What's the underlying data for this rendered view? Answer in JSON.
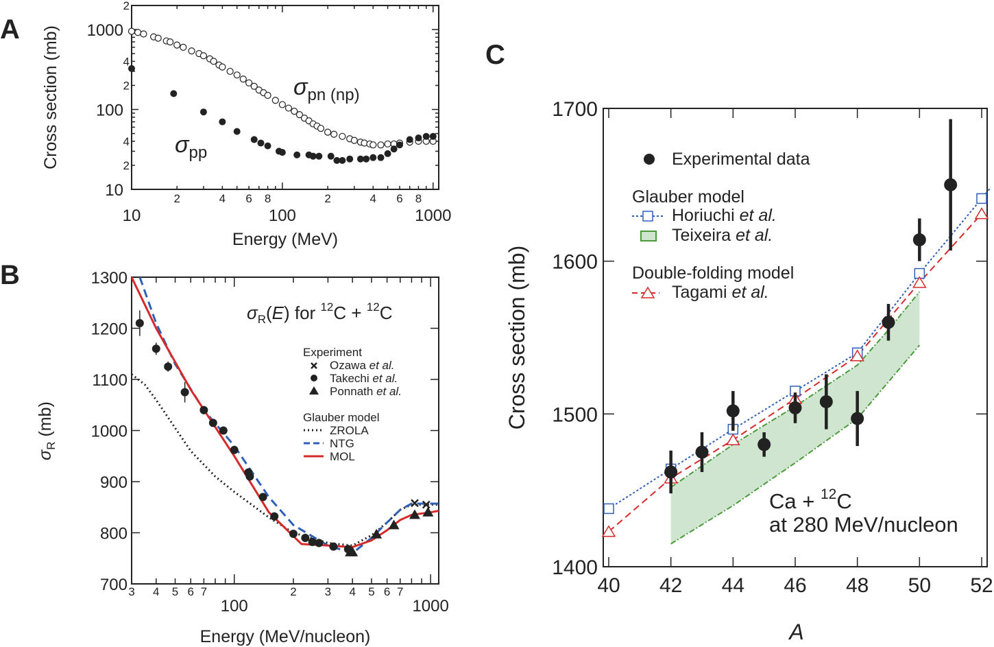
{
  "colors": {
    "axis": "#222222",
    "experiment": "#222222",
    "horiuchi": "#2f5fb5",
    "teixeira_fill": "#cfe5cf",
    "teixeira_line": "#4a9a3a",
    "tagami": "#d42a2a",
    "mol": "#d42a2a",
    "ntg": "#2f5fb5",
    "zrola": "#222222"
  },
  "chart_data": [
    {
      "panel": "A",
      "type": "scatter",
      "xscale": "log",
      "yscale": "log",
      "xlim": [
        10,
        1100
      ],
      "ylim": [
        10,
        2000
      ],
      "xlabel": "Energy (MeV)",
      "ylabel": "Cross section (mb)",
      "xticks_major": [
        "10",
        "100",
        "1000"
      ],
      "xticks_minor_labels": [
        "2",
        "4",
        "6",
        "8"
      ],
      "yticks_major": [
        "10",
        "100",
        "1000"
      ],
      "yticks_minor_labels": [
        "2",
        "4"
      ],
      "ytick_top": "2",
      "annotations": {
        "pn_symbol": "σ",
        "pn_sub": "pn (np)",
        "pp_symbol": "σ",
        "pp_sub": "pp"
      },
      "series": [
        {
          "name": "σpn (np)",
          "marker": "open-circle",
          "points": [
            [
              10,
              950
            ],
            [
              11,
              920
            ],
            [
              12,
              880
            ],
            [
              14,
              810
            ],
            [
              15,
              780
            ],
            [
              17,
              720
            ],
            [
              18,
              700
            ],
            [
              20,
              640
            ],
            [
              22,
              600
            ],
            [
              25,
              540
            ],
            [
              28,
              500
            ],
            [
              30,
              470
            ],
            [
              33,
              430
            ],
            [
              35,
              400
            ],
            [
              38,
              360
            ],
            [
              40,
              340
            ],
            [
              45,
              300
            ],
            [
              50,
              270
            ],
            [
              55,
              240
            ],
            [
              60,
              215
            ],
            [
              65,
              195
            ],
            [
              70,
              175
            ],
            [
              75,
              162
            ],
            [
              80,
              150
            ],
            [
              90,
              130
            ],
            [
              100,
              115
            ],
            [
              110,
              104
            ],
            [
              120,
              95
            ],
            [
              130,
              86
            ],
            [
              140,
              78
            ],
            [
              150,
              72
            ],
            [
              160,
              66
            ],
            [
              170,
              62
            ],
            [
              180,
              58
            ],
            [
              200,
              52
            ],
            [
              220,
              49
            ],
            [
              250,
              46
            ],
            [
              280,
              43
            ],
            [
              300,
              41
            ],
            [
              330,
              39
            ],
            [
              350,
              38
            ],
            [
              380,
              37
            ],
            [
              400,
              36
            ],
            [
              450,
              36
            ],
            [
              500,
              37
            ],
            [
              550,
              37
            ],
            [
              600,
              38
            ],
            [
              700,
              39
            ],
            [
              800,
              40
            ],
            [
              900,
              40
            ],
            [
              1000,
              40
            ]
          ]
        },
        {
          "name": "σpp",
          "marker": "filled-circle",
          "points": [
            [
              10,
              325
            ],
            [
              19,
              158
            ],
            [
              30,
              93
            ],
            [
              40,
              70
            ],
            [
              50,
              53
            ],
            [
              65,
              42
            ],
            [
              72,
              38
            ],
            [
              80,
              35
            ],
            [
              95,
              30
            ],
            [
              100,
              29
            ],
            [
              125,
              27
            ],
            [
              150,
              27
            ],
            [
              160,
              26
            ],
            [
              175,
              26
            ],
            [
              210,
              26
            ],
            [
              230,
              23
            ],
            [
              250,
              23
            ],
            [
              280,
              24
            ],
            [
              330,
              24
            ],
            [
              360,
              24
            ],
            [
              400,
              25
            ],
            [
              450,
              25
            ],
            [
              500,
              28
            ],
            [
              550,
              32
            ],
            [
              600,
              36
            ],
            [
              700,
              42
            ],
            [
              800,
              44
            ],
            [
              900,
              46
            ],
            [
              1000,
              46
            ]
          ]
        }
      ]
    },
    {
      "panel": "B",
      "type": "line",
      "xscale": "log",
      "yscale": "linear",
      "xlim": [
        30,
        1100
      ],
      "ylim": [
        700,
        1300
      ],
      "xlabel": "Energy (MeV/nucleon)",
      "ylabel": {
        "symbol": "σ",
        "sub": "R",
        "rest": " (mb)"
      },
      "title": {
        "a": "σ",
        "sub": "R",
        "b": "(",
        "E": "E",
        "c": ") for ",
        "sup1": "12",
        "d": "C + ",
        "sup2": "12",
        "e": "C"
      },
      "xticks_major": [
        "100",
        "1000"
      ],
      "xticks_minor_labels": [
        "3",
        "4",
        "5",
        "6",
        "7",
        "2",
        "3",
        "4",
        "5",
        "6",
        "7"
      ],
      "yticks": [
        "700",
        "800",
        "900",
        "1000",
        "1100",
        "1200",
        "1300"
      ],
      "legend": {
        "experiment_header": "Experiment",
        "glauber_header": "Glauber model",
        "et_al": "et al.",
        "ozawa": "Ozawa",
        "takechi": "Takechi",
        "ponnath": "Ponnath",
        "zrola": "ZROLA",
        "ntg": "NTG",
        "mol": "MOL"
      },
      "series": [
        {
          "name": "Ozawa et al.",
          "marker": "cross",
          "points": [
            [
              830,
              858
            ],
            [
              950,
              855
            ]
          ]
        },
        {
          "name": "Takechi et al.",
          "marker": "filled-circle",
          "points": [
            [
              33,
              1210,
              25
            ],
            [
              40,
              1160,
              12
            ],
            [
              46,
              1125,
              10
            ],
            [
              56,
              1075,
              20
            ],
            [
              70,
              1040,
              8
            ],
            [
              78,
              1015,
              8
            ],
            [
              88,
              1000,
              8
            ],
            [
              100,
              962,
              8
            ],
            [
              118,
              918,
              8
            ],
            [
              120,
              910,
              8
            ],
            [
              140,
              870,
              6
            ],
            [
              160,
              832,
              6
            ],
            [
              200,
              798,
              8
            ],
            [
              230,
              790,
              8
            ],
            [
              250,
              782,
              6
            ],
            [
              270,
              780,
              8
            ],
            [
              320,
              773,
              6
            ],
            [
              380,
              768,
              8
            ]
          ]
        },
        {
          "name": "Ponnath et al.",
          "marker": "filled-triangle",
          "points": [
            [
              390,
              762
            ],
            [
              400,
              762
            ],
            [
              530,
              797
            ],
            [
              650,
              815
            ],
            [
              830,
              835
            ],
            [
              970,
              840
            ]
          ]
        },
        {
          "name": "ZROLA",
          "style": "dotted",
          "points": [
            [
              30,
              1110
            ],
            [
              35,
              1090
            ],
            [
              40,
              1060
            ],
            [
              50,
              1005
            ],
            [
              60,
              960
            ],
            [
              80,
              910
            ],
            [
              100,
              880
            ],
            [
              150,
              830
            ],
            [
              200,
              800
            ],
            [
              300,
              780
            ],
            [
              400,
              775
            ],
            [
              500,
              795
            ],
            [
              600,
              820
            ],
            [
              700,
              845
            ],
            [
              800,
              855
            ],
            [
              1100,
              855
            ]
          ]
        },
        {
          "name": "NTG",
          "style": "dashed",
          "points": [
            [
              33,
              1300
            ],
            [
              40,
              1210
            ],
            [
              50,
              1130
            ],
            [
              70,
              1040
            ],
            [
              100,
              970
            ],
            [
              150,
              870
            ],
            [
              200,
              815
            ],
            [
              300,
              775
            ],
            [
              400,
              760
            ],
            [
              500,
              790
            ],
            [
              600,
              820
            ],
            [
              700,
              845
            ],
            [
              800,
              857
            ],
            [
              1100,
              857
            ]
          ]
        },
        {
          "name": "MOL",
          "style": "solid",
          "points": [
            [
              30,
              1300
            ],
            [
              40,
              1200
            ],
            [
              60,
              1080
            ],
            [
              100,
              950
            ],
            [
              150,
              840
            ],
            [
              220,
              778
            ],
            [
              300,
              775
            ],
            [
              400,
              772
            ],
            [
              500,
              785
            ],
            [
              600,
              805
            ],
            [
              700,
              825
            ],
            [
              800,
              835
            ],
            [
              1000,
              840
            ],
            [
              1100,
              843
            ]
          ]
        }
      ]
    },
    {
      "panel": "C",
      "type": "scatter",
      "xscale": "linear",
      "yscale": "linear",
      "xlim": [
        39.8,
        52.2
      ],
      "ylim": [
        1400,
        1700
      ],
      "xlabel": "A",
      "ylabel": "Cross section (mb)",
      "xticks": [
        "40",
        "42",
        "44",
        "46",
        "48",
        "50",
        "52"
      ],
      "yticks": [
        "1400",
        "1500",
        "1600",
        "1700"
      ],
      "annotation": {
        "a": "Ca + ",
        "sup": "12",
        "b": "C",
        "line2": "at 280 MeV/nucleon"
      },
      "legend": {
        "experimental": "Experimental data",
        "glauber_header": "Glauber model",
        "horiuchi": "Horiuchi ",
        "teixeira": "Teixeira ",
        "df_header": "Double-folding model",
        "tagami": "Tagami ",
        "et_al": "et al."
      },
      "experimental": [
        [
          42,
          1462,
          14
        ],
        [
          43,
          1475,
          13
        ],
        [
          44,
          1502,
          13
        ],
        [
          45,
          1480,
          8
        ],
        [
          46,
          1504,
          10
        ],
        [
          47,
          1508,
          18
        ],
        [
          48,
          1497,
          18
        ],
        [
          49,
          1560,
          12
        ],
        [
          50,
          1614,
          14
        ],
        [
          51,
          1650,
          43
        ]
      ],
      "horiuchi": [
        [
          40,
          1438
        ],
        [
          42,
          1464
        ],
        [
          44,
          1490
        ],
        [
          46,
          1515
        ],
        [
          48,
          1540
        ],
        [
          50,
          1592
        ],
        [
          52,
          1641
        ]
      ],
      "tagami": [
        [
          40,
          1423
        ],
        [
          42,
          1458
        ],
        [
          44,
          1483
        ],
        [
          46,
          1510
        ],
        [
          48,
          1538
        ],
        [
          50,
          1586
        ],
        [
          52,
          1631
        ]
      ],
      "teixeira_band": {
        "upper": [
          [
            42,
            1452
          ],
          [
            44,
            1480
          ],
          [
            46,
            1505
          ],
          [
            48,
            1532
          ],
          [
            49,
            1555
          ],
          [
            50,
            1580
          ]
        ],
        "lower": [
          [
            42,
            1415
          ],
          [
            44,
            1440
          ],
          [
            46,
            1468
          ],
          [
            48,
            1497
          ],
          [
            50,
            1545
          ]
        ]
      }
    }
  ]
}
